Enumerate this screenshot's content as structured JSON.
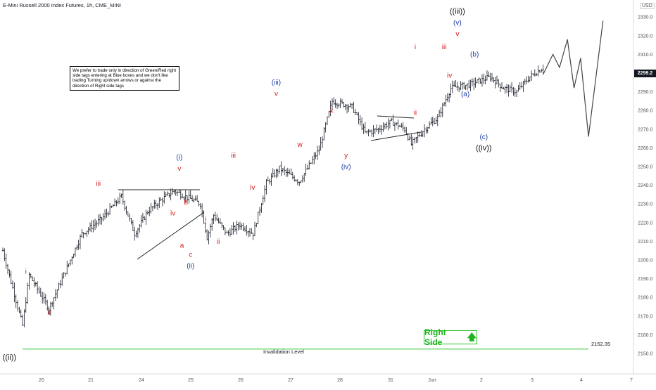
{
  "title": "E-Mini Russell 2000 Index Futures, 1h, CME_MINI",
  "currency": "USD",
  "last_price": "2299.2",
  "note": "We prefer to trade only in direction of Green/Red right side tags entering at Blue boxes and we don't like trading Turning up/down arrows or against the direction of Right side tags",
  "right_side_label": "Right Side",
  "invalidation": {
    "label": "Invalidation Level",
    "value": "2152.35",
    "level": 2152.35,
    "color": "#27c427"
  },
  "colors": {
    "red": "#d32020",
    "blue": "#1f3fa8",
    "bar": "#131722",
    "green": "#27c427"
  },
  "chart_data": {
    "type": "line",
    "title": "E-Mini Russell 2000 Index Futures, 1h, CME_MINI",
    "y_axis": {
      "ticks": [
        "2150.0",
        "2160.0",
        "2170.0",
        "2180.0",
        "2190.0",
        "2200.0",
        "2210.0",
        "2220.0",
        "2230.0",
        "2240.0",
        "2250.0",
        "2260.0",
        "2270.0",
        "2280.0",
        "2290.0",
        "2300.0",
        "2310.0",
        "2320.0",
        "2330.0"
      ],
      "range": [
        2144,
        2334
      ]
    },
    "x_axis": {
      "ticks": [
        "20",
        "21",
        "24",
        "25",
        "26",
        "27",
        "28",
        "31",
        "Jun",
        "2",
        "3",
        "4",
        "7"
      ]
    },
    "price_path": [
      [
        0,
        2205
      ],
      [
        3,
        2165
      ],
      [
        4,
        2192
      ],
      [
        7,
        2174
      ],
      [
        12,
        2214
      ],
      [
        15,
        2222
      ],
      [
        18,
        2234
      ],
      [
        20,
        2214
      ],
      [
        22,
        2226
      ],
      [
        24,
        2232
      ],
      [
        26,
        2237
      ],
      [
        30,
        2230
      ],
      [
        31,
        2212
      ],
      [
        32,
        2224
      ],
      [
        34,
        2214
      ],
      [
        36,
        2219
      ],
      [
        38,
        2214
      ],
      [
        40,
        2241
      ],
      [
        42,
        2249
      ],
      [
        45,
        2242
      ],
      [
        48,
        2259
      ],
      [
        50,
        2285
      ],
      [
        53,
        2282
      ],
      [
        55,
        2268
      ],
      [
        57,
        2270
      ],
      [
        59,
        2274
      ],
      [
        61,
        2270
      ],
      [
        62,
        2262
      ],
      [
        64,
        2270
      ],
      [
        66,
        2276
      ],
      [
        68,
        2292
      ],
      [
        71,
        2294
      ],
      [
        74,
        2298
      ],
      [
        76,
        2292
      ],
      [
        78,
        2290
      ],
      [
        80,
        2298
      ],
      [
        82,
        2303
      ]
    ],
    "projection": [
      [
        82,
        2299.2
      ],
      [
        83.5,
        2310
      ],
      [
        84.5,
        2303
      ],
      [
        85.7,
        2318
      ],
      [
        86.7,
        2292
      ],
      [
        87.7,
        2308
      ],
      [
        88.9,
        2266
      ],
      [
        91.1,
        2328
      ]
    ],
    "wave_labels": [
      {
        "text": "((ii))",
        "color": "black",
        "x": 1,
        "y": 2150,
        "pos": "below"
      },
      {
        "text": "i",
        "color": "red",
        "x": 3.5,
        "y": 2192,
        "pos": "above"
      },
      {
        "text": "ii",
        "color": "red",
        "x": 7,
        "y": 2174,
        "pos": "below"
      },
      {
        "text": "iii",
        "color": "red",
        "x": 14.5,
        "y": 2239,
        "pos": "above"
      },
      {
        "text": "iv",
        "color": "red",
        "x": 25,
        "y": 2225,
        "pos": "right"
      },
      {
        "text": "v",
        "color": "red",
        "x": 26.8,
        "y": 2247,
        "pos": "above"
      },
      {
        "text": "(i)",
        "color": "blue",
        "x": 26.8,
        "y": 2253,
        "pos": "above"
      },
      {
        "text": "a",
        "color": "red",
        "x": 27.2,
        "y": 2210,
        "pos": "below"
      },
      {
        "text": "b",
        "color": "red",
        "x": 27.8,
        "y": 2229,
        "pos": "above"
      },
      {
        "text": "c",
        "color": "red",
        "x": 28.5,
        "y": 2205,
        "pos": "below"
      },
      {
        "text": "(ii)",
        "color": "blue",
        "x": 28.5,
        "y": 2199,
        "pos": "below"
      },
      {
        "text": "i",
        "color": "red",
        "x": 30.8,
        "y": 2220,
        "pos": "above"
      },
      {
        "text": "ii",
        "color": "red",
        "x": 32.7,
        "y": 2212,
        "pos": "below"
      },
      {
        "text": "iii",
        "color": "red",
        "x": 35,
        "y": 2254,
        "pos": "above"
      },
      {
        "text": "iv",
        "color": "red",
        "x": 37.9,
        "y": 2241,
        "pos": "below"
      },
      {
        "text": "v",
        "color": "red",
        "x": 41.5,
        "y": 2287,
        "pos": "above"
      },
      {
        "text": "(iii)",
        "color": "blue",
        "x": 41.5,
        "y": 2293,
        "pos": "above"
      },
      {
        "text": "w",
        "color": "red",
        "x": 45.1,
        "y": 2264,
        "pos": "below"
      },
      {
        "text": "x",
        "color": "red",
        "x": 49.9,
        "y": 2278,
        "pos": "above"
      },
      {
        "text": "y",
        "color": "red",
        "x": 52.1,
        "y": 2258,
        "pos": "below"
      },
      {
        "text": "(iv)",
        "color": "blue",
        "x": 52.1,
        "y": 2252,
        "pos": "below"
      },
      {
        "text": "i",
        "color": "red",
        "x": 62.6,
        "y": 2312,
        "pos": "above"
      },
      {
        "text": "ii",
        "color": "red",
        "x": 62.6,
        "y": 2281,
        "pos": "below"
      },
      {
        "text": "iii",
        "color": "red",
        "x": 67,
        "y": 2312,
        "pos": "above"
      },
      {
        "text": "iv",
        "color": "red",
        "x": 67.8,
        "y": 2301,
        "pos": "below"
      },
      {
        "text": "v",
        "color": "red",
        "x": 69,
        "y": 2319,
        "pos": "above"
      },
      {
        "text": "(v)",
        "color": "blue",
        "x": 69,
        "y": 2325,
        "pos": "above"
      },
      {
        "text": "((iii))",
        "color": "black",
        "x": 69,
        "y": 2331,
        "pos": "above"
      },
      {
        "text": "(a)",
        "color": "blue",
        "x": 70.2,
        "y": 2291,
        "pos": "below"
      },
      {
        "text": "(b)",
        "color": "blue",
        "x": 71.6,
        "y": 2308,
        "pos": "above"
      },
      {
        "text": "(c)",
        "color": "blue",
        "x": 73,
        "y": 2268,
        "pos": "below"
      },
      {
        "text": "((iv))",
        "color": "black",
        "x": 73,
        "y": 2262,
        "pos": "below"
      }
    ]
  }
}
